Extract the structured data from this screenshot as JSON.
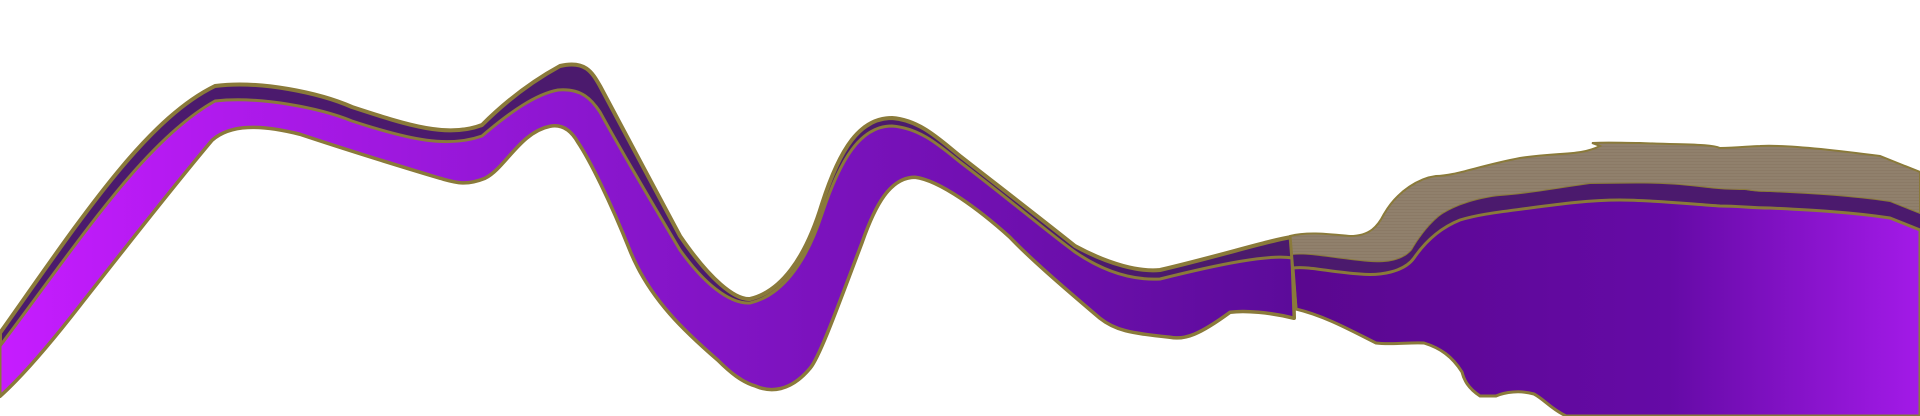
{
  "colors": {
    "background": "#ffffff",
    "outline": "#8a7a3a",
    "shadow": "#4b1a6d",
    "ribbon_start": "#c61cff",
    "ribbon_mid": "#7d16c2",
    "ribbon_end": "#5c0b9a",
    "blob_dark": "#5a078f",
    "blob_light": "#9f19e6",
    "texture": "#8b7a66"
  },
  "shapes": [
    {
      "name": "purple-ribbon",
      "kind": "decorative-path"
    },
    {
      "name": "purple-blob",
      "kind": "decorative-path"
    }
  ]
}
